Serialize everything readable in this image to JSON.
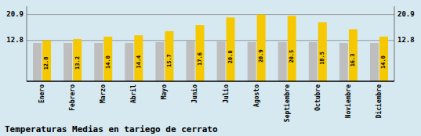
{
  "chart_data": {
    "type": "bar",
    "title": "Temperaturas Medias en tariego de cerrato",
    "categories": [
      "Enero",
      "Febrero",
      "Marzo",
      "Abril",
      "Mayo",
      "Junio",
      "Julio",
      "Agosto",
      "Septiembre",
      "Octubre",
      "Noviembre",
      "Diciembre"
    ],
    "series": [
      {
        "color": "#BEBEBE",
        "values": [
          12.0,
          12.0,
          12.0,
          12.0,
          12.3,
          12.8,
          12.5,
          12.3,
          12.3,
          12.3,
          12.0,
          12.0
        ]
      },
      {
        "color": "#F5C800",
        "values": [
          12.8,
          13.2,
          14.0,
          14.4,
          15.7,
          17.6,
          20.0,
          20.9,
          20.5,
          18.5,
          16.3,
          14.0
        ],
        "data_labels": true,
        "value_labels": [
          "12.8",
          "13.2",
          "14.0",
          "14.4",
          "15.7",
          "17.6",
          "20.0",
          "20.9",
          "20.5",
          "18.5",
          "16.3",
          "14.0"
        ]
      }
    ],
    "ylim": [
      0,
      23.5
    ],
    "yticks": [
      12.8,
      20.9
    ],
    "y2lim": [
      0,
      23.5
    ],
    "y2ticks": [
      12.8,
      20.9
    ],
    "grid": true
  }
}
